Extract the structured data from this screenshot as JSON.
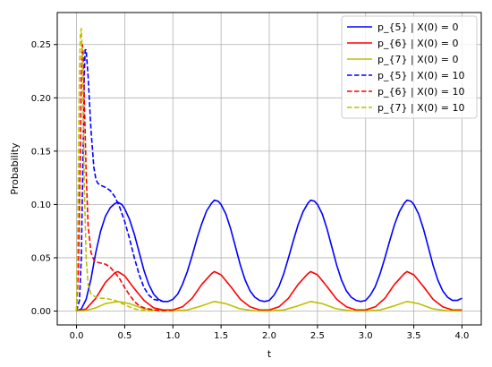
{
  "chart_data": {
    "type": "line",
    "title": "",
    "xlabel": "t",
    "ylabel": "Probability",
    "xlim": [
      -0.2,
      4.2
    ],
    "ylim": [
      -0.013,
      0.28
    ],
    "grid": true,
    "legend_position": "top-right",
    "x_ticks": [
      "0.0",
      "0.5",
      "1.0",
      "1.5",
      "2.0",
      "2.5",
      "3.0",
      "3.5",
      "4.0"
    ],
    "y_ticks": [
      "0.00",
      "0.05",
      "0.10",
      "0.15",
      "0.20",
      "0.25"
    ],
    "x_tick_values": [
      0,
      0.5,
      1,
      1.5,
      2,
      2.5,
      3,
      3.5,
      4
    ],
    "y_tick_values": [
      0,
      0.05,
      0.1,
      0.15,
      0.2,
      0.25
    ],
    "series": [
      {
        "name": "p_{5} | X(0) = 0",
        "color": "#0000ff",
        "dash": "solid",
        "x": [
          0,
          0.05,
          0.1,
          0.15,
          0.2,
          0.25,
          0.3,
          0.35,
          0.4,
          0.43,
          0.47,
          0.5,
          0.55,
          0.6,
          0.65,
          0.7,
          0.75,
          0.8,
          0.85,
          0.9,
          0.95,
          1.0,
          1.05,
          1.1,
          1.15,
          1.2,
          1.25,
          1.3,
          1.35,
          1.4,
          1.43,
          1.47,
          1.5,
          1.55,
          1.6,
          1.65,
          1.7,
          1.75,
          1.8,
          1.85,
          1.9,
          1.95,
          2.0,
          2.05,
          2.1,
          2.15,
          2.2,
          2.25,
          2.3,
          2.35,
          2.4,
          2.43,
          2.47,
          2.5,
          2.55,
          2.6,
          2.65,
          2.7,
          2.75,
          2.8,
          2.85,
          2.9,
          2.95,
          3.0,
          3.05,
          3.1,
          3.15,
          3.2,
          3.25,
          3.3,
          3.35,
          3.4,
          3.43,
          3.47,
          3.5,
          3.55,
          3.6,
          3.65,
          3.7,
          3.75,
          3.8,
          3.85,
          3.9,
          3.95,
          4.0
        ],
        "y": [
          0,
          0.002,
          0.011,
          0.03,
          0.055,
          0.075,
          0.089,
          0.097,
          0.101,
          0.102,
          0.1,
          0.096,
          0.086,
          0.072,
          0.055,
          0.038,
          0.025,
          0.016,
          0.011,
          0.009,
          0.009,
          0.011,
          0.016,
          0.025,
          0.037,
          0.052,
          0.068,
          0.082,
          0.094,
          0.101,
          0.104,
          0.103,
          0.1,
          0.091,
          0.077,
          0.06,
          0.043,
          0.029,
          0.019,
          0.013,
          0.01,
          0.009,
          0.01,
          0.015,
          0.023,
          0.035,
          0.05,
          0.066,
          0.081,
          0.093,
          0.101,
          0.104,
          0.103,
          0.1,
          0.091,
          0.077,
          0.06,
          0.043,
          0.029,
          0.019,
          0.013,
          0.01,
          0.009,
          0.01,
          0.015,
          0.023,
          0.035,
          0.05,
          0.066,
          0.081,
          0.093,
          0.101,
          0.104,
          0.103,
          0.1,
          0.091,
          0.077,
          0.06,
          0.043,
          0.029,
          0.019,
          0.013,
          0.01,
          0.01,
          0.012
        ]
      },
      {
        "name": "p_{6} | X(0) = 0",
        "color": "#ff0000",
        "dash": "solid",
        "x": [
          0,
          0.1,
          0.2,
          0.3,
          0.4,
          0.43,
          0.5,
          0.6,
          0.7,
          0.8,
          0.9,
          1.0,
          1.1,
          1.2,
          1.3,
          1.4,
          1.43,
          1.5,
          1.6,
          1.7,
          1.8,
          1.9,
          2.0,
          2.1,
          2.2,
          2.3,
          2.4,
          2.43,
          2.5,
          2.6,
          2.7,
          2.8,
          2.9,
          3.0,
          3.1,
          3.2,
          3.3,
          3.4,
          3.43,
          3.5,
          3.6,
          3.7,
          3.8,
          3.9,
          4.0
        ],
        "y": [
          0,
          0.002,
          0.012,
          0.027,
          0.036,
          0.037,
          0.033,
          0.021,
          0.01,
          0.003,
          0.001,
          0.001,
          0.004,
          0.012,
          0.025,
          0.035,
          0.037,
          0.034,
          0.023,
          0.011,
          0.004,
          0.001,
          0.001,
          0.004,
          0.012,
          0.025,
          0.035,
          0.037,
          0.034,
          0.023,
          0.011,
          0.004,
          0.001,
          0.001,
          0.004,
          0.012,
          0.025,
          0.035,
          0.037,
          0.034,
          0.023,
          0.011,
          0.004,
          0.001,
          0.001
        ]
      },
      {
        "name": "p_{7} | X(0) = 0",
        "color": "#bfbf00",
        "dash": "solid",
        "x": [
          0,
          0.1,
          0.2,
          0.3,
          0.43,
          0.55,
          0.7,
          0.85,
          1.0,
          1.15,
          1.3,
          1.43,
          1.55,
          1.7,
          1.85,
          2.0,
          2.15,
          2.3,
          2.43,
          2.55,
          2.7,
          2.85,
          3.0,
          3.15,
          3.3,
          3.43,
          3.55,
          3.7,
          3.85,
          4.0
        ],
        "y": [
          0,
          0.0005,
          0.003,
          0.007,
          0.009,
          0.007,
          0.002,
          0.0002,
          0.0001,
          0.001,
          0.005,
          0.009,
          0.007,
          0.002,
          0.0002,
          0.0001,
          0.001,
          0.005,
          0.009,
          0.007,
          0.002,
          0.0002,
          0.0001,
          0.001,
          0.005,
          0.009,
          0.007,
          0.002,
          0.0002,
          0.0001
        ]
      },
      {
        "name": "p_{5} | X(0) = 10",
        "color": "#0000ff",
        "dash": "dashed",
        "x": [
          0,
          0.03,
          0.05,
          0.07,
          0.08,
          0.09,
          0.1,
          0.12,
          0.15,
          0.18,
          0.2,
          0.22,
          0.25,
          0.3,
          0.35,
          0.4,
          0.45,
          0.5,
          0.55,
          0.6,
          0.65,
          0.7,
          0.75,
          0.8,
          0.85,
          0.9
        ],
        "y": [
          0,
          0.01,
          0.05,
          0.16,
          0.22,
          0.245,
          0.245,
          0.22,
          0.17,
          0.135,
          0.124,
          0.12,
          0.118,
          0.116,
          0.113,
          0.107,
          0.097,
          0.084,
          0.068,
          0.05,
          0.034,
          0.022,
          0.015,
          0.011,
          0.01,
          0.009
        ]
      },
      {
        "name": "p_{6} | X(0) = 10",
        "color": "#ff0000",
        "dash": "dashed",
        "x": [
          0,
          0.02,
          0.04,
          0.05,
          0.06,
          0.07,
          0.08,
          0.1,
          0.12,
          0.15,
          0.18,
          0.2,
          0.25,
          0.3,
          0.35,
          0.4,
          0.45,
          0.5,
          0.55,
          0.6,
          0.65,
          0.7,
          0.8,
          0.9,
          1.0
        ],
        "y": [
          0,
          0.04,
          0.15,
          0.22,
          0.25,
          0.24,
          0.2,
          0.13,
          0.08,
          0.055,
          0.048,
          0.046,
          0.045,
          0.044,
          0.041,
          0.036,
          0.03,
          0.022,
          0.015,
          0.009,
          0.005,
          0.003,
          0.001,
          0.0005,
          0.001
        ]
      },
      {
        "name": "p_{7} | X(0) = 10",
        "color": "#bfbf00",
        "dash": "dashed",
        "x": [
          0,
          0.01,
          0.03,
          0.04,
          0.05,
          0.06,
          0.07,
          0.08,
          0.1,
          0.12,
          0.15,
          0.2,
          0.25,
          0.3,
          0.35,
          0.4,
          0.45,
          0.5,
          0.55,
          0.6,
          0.7,
          0.8
        ],
        "y": [
          0,
          0.06,
          0.22,
          0.26,
          0.265,
          0.24,
          0.18,
          0.12,
          0.05,
          0.025,
          0.016,
          0.013,
          0.012,
          0.012,
          0.011,
          0.01,
          0.008,
          0.006,
          0.004,
          0.002,
          0.0005,
          0.0001
        ]
      }
    ]
  }
}
